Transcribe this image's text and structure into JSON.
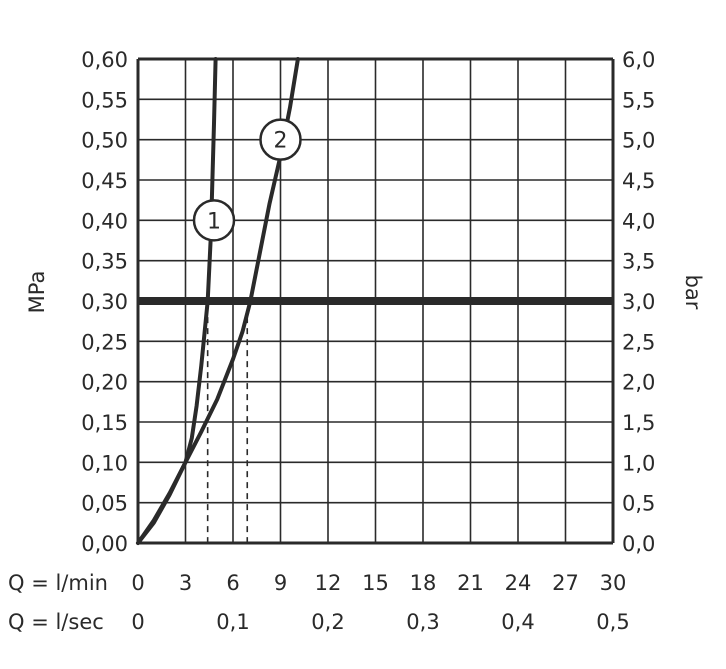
{
  "chart_data": {
    "type": "line",
    "ylabel_left": "MPa",
    "ylabel_right": "bar",
    "xlim": [
      0,
      30
    ],
    "ylim": [
      0,
      0.6
    ],
    "grid": true,
    "x_ticks": [
      0,
      3,
      6,
      9,
      12,
      15,
      18,
      21,
      24,
      27,
      30
    ],
    "x_tick_labels": [
      "0",
      "3",
      "6",
      "9",
      "12",
      "15",
      "18",
      "21",
      "24",
      "27",
      "30"
    ],
    "x_row_label": "Q = l/min",
    "x2_row_label": "Q = l/sec",
    "x2_tick_labels": [
      {
        "label": "0",
        "at": 0
      },
      {
        "label": "0,1",
        "at": 6
      },
      {
        "label": "0,2",
        "at": 12
      },
      {
        "label": "0,3",
        "at": 18
      },
      {
        "label": "0,4",
        "at": 24
      },
      {
        "label": "0,5",
        "at": 30
      }
    ],
    "y_ticks": [
      0,
      0.05,
      0.1,
      0.15,
      0.2,
      0.25,
      0.3,
      0.35,
      0.4,
      0.45,
      0.5,
      0.55,
      0.6
    ],
    "y_tick_labels_left": [
      "0,00",
      "0,05",
      "0,10",
      "0,15",
      "0,20",
      "0,25",
      "0,30",
      "0,35",
      "0,40",
      "0,45",
      "0,50",
      "0,55",
      "0,60"
    ],
    "y_tick_labels_right": [
      "0,0",
      "0,5",
      "1,0",
      "1,5",
      "2,0",
      "2,5",
      "3,0",
      "3,5",
      "4,0",
      "4,5",
      "5,0",
      "5,5",
      "6,0"
    ],
    "reference_line": {
      "y": 0.3
    },
    "reference_drops": [
      {
        "x": 4.4,
        "y": 0.28
      },
      {
        "x": 6.9,
        "y": 0.28
      }
    ],
    "series": [
      {
        "name": "1",
        "x": [
          0,
          1,
          2,
          3,
          3.4,
          3.7,
          4.0,
          4.2,
          4.4,
          4.6,
          4.7,
          4.8,
          4.9
        ],
        "y": [
          0,
          0.025,
          0.06,
          0.1,
          0.13,
          0.17,
          0.22,
          0.26,
          0.3,
          0.38,
          0.45,
          0.52,
          0.6
        ]
      },
      {
        "name": "2",
        "x": [
          0,
          1,
          2,
          3,
          4,
          5,
          6,
          6.6,
          7.1,
          7.6,
          8.3,
          9.0,
          9.6,
          10.1
        ],
        "y": [
          0,
          0.028,
          0.062,
          0.1,
          0.138,
          0.178,
          0.228,
          0.262,
          0.3,
          0.35,
          0.42,
          0.48,
          0.54,
          0.6
        ]
      }
    ],
    "markers": [
      {
        "label": "1",
        "x": 4.8,
        "y": 0.4
      },
      {
        "label": "2",
        "x": 9.0,
        "y": 0.5
      }
    ]
  }
}
